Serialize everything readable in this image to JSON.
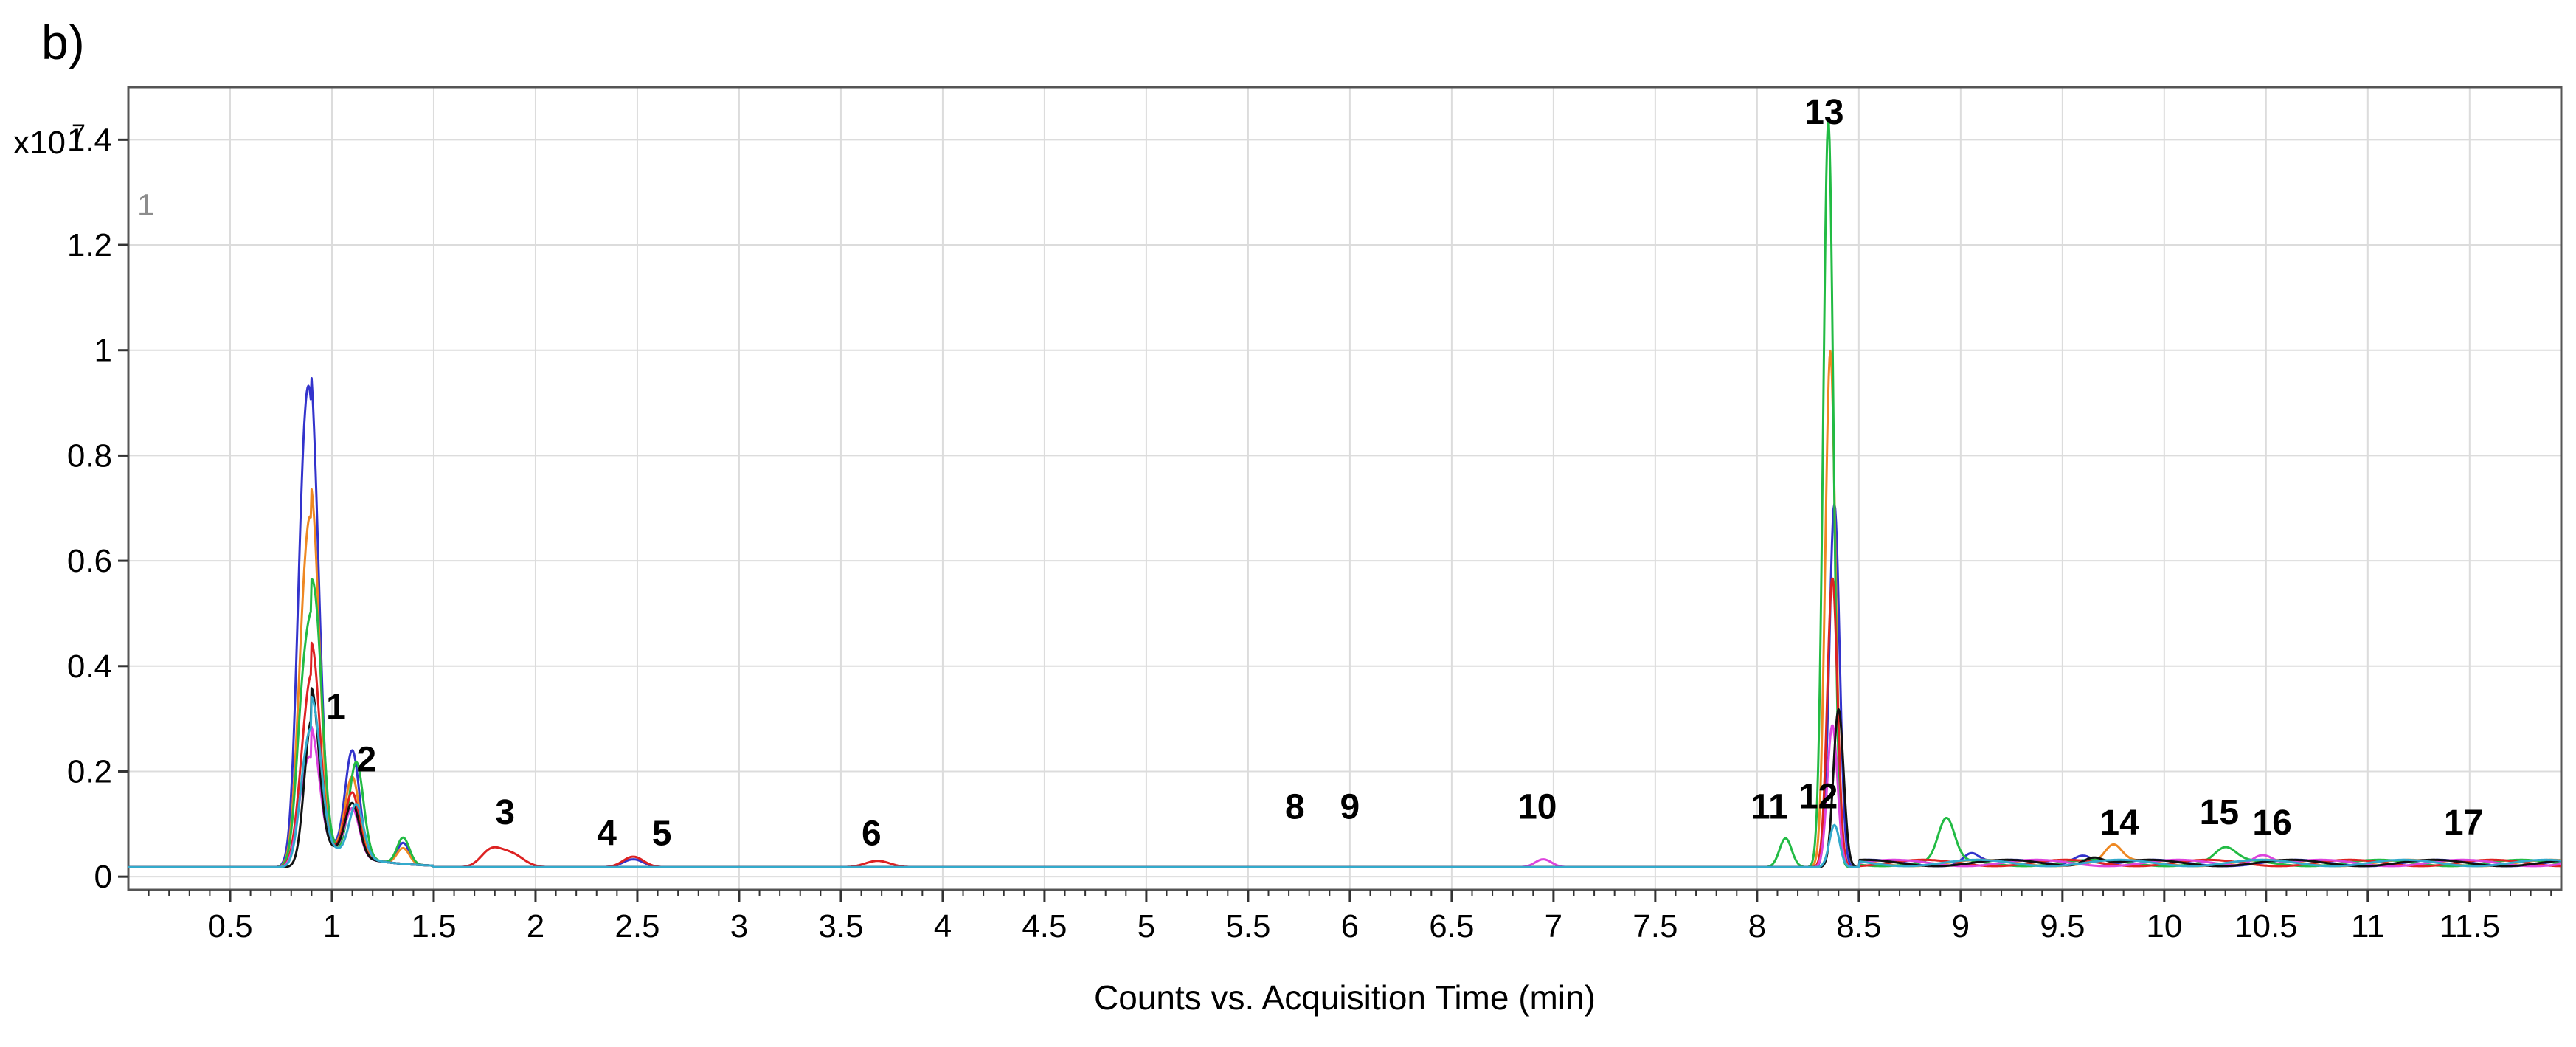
{
  "panel_label": "b)",
  "y_multiplier": {
    "base": "x10",
    "exponent": "7"
  },
  "trace_label": "1",
  "chart_data": {
    "type": "line",
    "title": "",
    "xlabel": "Counts vs. Acquisition Time (min)",
    "ylabel": "",
    "xlim": [
      0,
      11.95
    ],
    "ylim": [
      -0.025,
      1.5
    ],
    "grid": true,
    "x_ticks": [
      {
        "v": 0.5,
        "label": "0.5"
      },
      {
        "v": 1,
        "label": "1"
      },
      {
        "v": 1.5,
        "label": "1.5"
      },
      {
        "v": 2,
        "label": "2"
      },
      {
        "v": 2.5,
        "label": "2.5"
      },
      {
        "v": 3,
        "label": "3"
      },
      {
        "v": 3.5,
        "label": "3.5"
      },
      {
        "v": 4,
        "label": "4"
      },
      {
        "v": 4.5,
        "label": "4.5"
      },
      {
        "v": 5,
        "label": "5"
      },
      {
        "v": 5.5,
        "label": "5.5"
      },
      {
        "v": 6,
        "label": "6"
      },
      {
        "v": 6.5,
        "label": "6.5"
      },
      {
        "v": 7,
        "label": "7"
      },
      {
        "v": 7.5,
        "label": "7.5"
      },
      {
        "v": 8,
        "label": "8"
      },
      {
        "v": 8.5,
        "label": "8.5"
      },
      {
        "v": 9,
        "label": "9"
      },
      {
        "v": 9.5,
        "label": "9.5"
      },
      {
        "v": 10,
        "label": "10"
      },
      {
        "v": 10.5,
        "label": "10.5"
      },
      {
        "v": 11,
        "label": "11"
      },
      {
        "v": 11.5,
        "label": "11.5"
      }
    ],
    "y_ticks": [
      {
        "v": 0,
        "label": "0"
      },
      {
        "v": 0.2,
        "label": "0.2"
      },
      {
        "v": 0.4,
        "label": "0.4"
      },
      {
        "v": 0.6,
        "label": "0.6"
      },
      {
        "v": 0.8,
        "label": "0.8"
      },
      {
        "v": 1,
        "label": "1"
      },
      {
        "v": 1.2,
        "label": "1.2"
      },
      {
        "v": 1.4,
        "label": "1.4"
      }
    ],
    "peak_labels": [
      {
        "label": "1",
        "x": 1.02,
        "y": 0.3
      },
      {
        "label": "2",
        "x": 1.17,
        "y": 0.2
      },
      {
        "label": "3",
        "x": 1.85,
        "y": 0.1
      },
      {
        "label": "4",
        "x": 2.35,
        "y": 0.06
      },
      {
        "label": "5",
        "x": 2.62,
        "y": 0.06
      },
      {
        "label": "6",
        "x": 3.65,
        "y": 0.06
      },
      {
        "label": "8",
        "x": 5.73,
        "y": 0.11
      },
      {
        "label": "9",
        "x": 6.0,
        "y": 0.11
      },
      {
        "label": "10",
        "x": 6.92,
        "y": 0.11
      },
      {
        "label": "11",
        "x": 8.06,
        "y": 0.11
      },
      {
        "label": "12",
        "x": 8.3,
        "y": 0.13
      },
      {
        "label": "13",
        "x": 8.33,
        "y": 1.43
      },
      {
        "label": "14",
        "x": 9.78,
        "y": 0.08
      },
      {
        "label": "15",
        "x": 10.27,
        "y": 0.1
      },
      {
        "label": "16",
        "x": 10.53,
        "y": 0.08
      },
      {
        "label": "17",
        "x": 11.47,
        "y": 0.08
      }
    ],
    "baseline": 0.018,
    "series": [
      {
        "color": "#3333cc",
        "peaks": [
          {
            "x": 0.86,
            "h": 0.6,
            "w": 0.035
          },
          {
            "x": 0.91,
            "h": 0.58,
            "w": 0.035
          },
          {
            "x": 1.1,
            "h": 0.2,
            "w": 0.035
          },
          {
            "x": 1.35,
            "h": 0.04,
            "w": 0.03
          },
          {
            "x": 2.48,
            "h": 0.015,
            "w": 0.05
          },
          {
            "x": 8.38,
            "h": 0.69,
            "w": 0.025
          },
          {
            "x": 9.05,
            "h": 0.02,
            "w": 0.04
          },
          {
            "x": 9.6,
            "h": 0.02,
            "w": 0.05
          }
        ]
      },
      {
        "color": "#ee8822",
        "peaks": [
          {
            "x": 0.86,
            "h": 0.36,
            "w": 0.035
          },
          {
            "x": 0.91,
            "h": 0.49,
            "w": 0.035
          },
          {
            "x": 1.1,
            "h": 0.15,
            "w": 0.035
          },
          {
            "x": 1.35,
            "h": 0.03,
            "w": 0.03
          },
          {
            "x": 8.36,
            "h": 0.98,
            "w": 0.025
          },
          {
            "x": 9.75,
            "h": 0.03,
            "w": 0.04
          }
        ]
      },
      {
        "color": "#22bb44",
        "peaks": [
          {
            "x": 0.86,
            "h": 0.3,
            "w": 0.035
          },
          {
            "x": 0.92,
            "h": 0.39,
            "w": 0.035
          },
          {
            "x": 1.12,
            "h": 0.18,
            "w": 0.035
          },
          {
            "x": 1.35,
            "h": 0.05,
            "w": 0.03
          },
          {
            "x": 8.14,
            "h": 0.055,
            "w": 0.03
          },
          {
            "x": 8.35,
            "h": 1.42,
            "w": 0.025
          },
          {
            "x": 8.93,
            "h": 0.08,
            "w": 0.04
          },
          {
            "x": 10.3,
            "h": 0.025,
            "w": 0.05
          }
        ]
      },
      {
        "color": "#dd2222",
        "peaks": [
          {
            "x": 0.86,
            "h": 0.15,
            "w": 0.035
          },
          {
            "x": 0.91,
            "h": 0.3,
            "w": 0.035
          },
          {
            "x": 1.1,
            "h": 0.12,
            "w": 0.035
          },
          {
            "x": 1.78,
            "h": 0.03,
            "w": 0.05
          },
          {
            "x": 1.88,
            "h": 0.025,
            "w": 0.06
          },
          {
            "x": 2.48,
            "h": 0.02,
            "w": 0.05
          },
          {
            "x": 3.68,
            "h": 0.012,
            "w": 0.06
          },
          {
            "x": 8.37,
            "h": 0.55,
            "w": 0.025
          }
        ]
      },
      {
        "color": "#dd44dd",
        "peaks": [
          {
            "x": 0.86,
            "h": 0.12,
            "w": 0.035
          },
          {
            "x": 0.91,
            "h": 0.15,
            "w": 0.035
          },
          {
            "x": 1.1,
            "h": 0.09,
            "w": 0.035
          },
          {
            "x": 6.95,
            "h": 0.015,
            "w": 0.04
          },
          {
            "x": 8.37,
            "h": 0.27,
            "w": 0.025
          },
          {
            "x": 10.48,
            "h": 0.02,
            "w": 0.05
          }
        ]
      },
      {
        "color": "#111111",
        "peaks": [
          {
            "x": 0.9,
            "h": 0.28,
            "w": 0.035
          },
          {
            "x": 1.1,
            "h": 0.1,
            "w": 0.035
          },
          {
            "x": 8.4,
            "h": 0.3,
            "w": 0.025
          },
          {
            "x": 9.65,
            "h": 0.015,
            "w": 0.05
          }
        ]
      },
      {
        "color": "#33aacc",
        "peaks": [
          {
            "x": 0.87,
            "h": 0.16,
            "w": 0.035
          },
          {
            "x": 0.92,
            "h": 0.18,
            "w": 0.035
          },
          {
            "x": 1.12,
            "h": 0.1,
            "w": 0.035
          },
          {
            "x": 8.38,
            "h": 0.08,
            "w": 0.025
          }
        ]
      }
    ]
  }
}
